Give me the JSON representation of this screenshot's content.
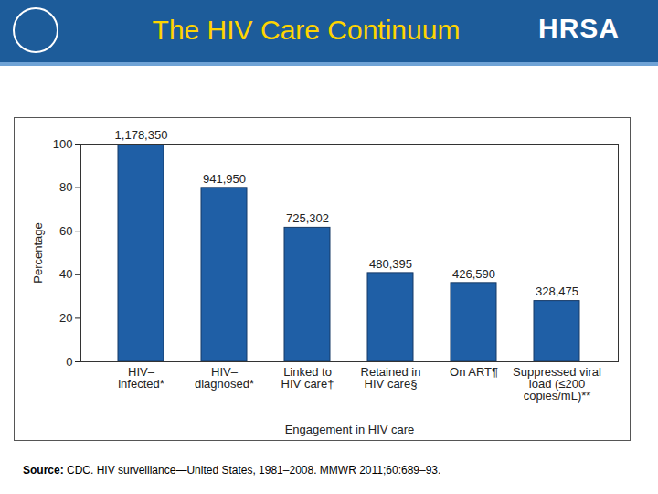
{
  "chart_data": {
    "type": "bar",
    "title": "The HIV Care Continuum",
    "header_logo": "HRSA",
    "categories": [
      "HIV–\ninfected*",
      "HIV–\ndiagnosed*",
      "Linked to\nHIV care†",
      "Retained in\nHIV care§",
      "On ART¶",
      "Suppressed viral\nload (≤200\ncopies/mL)**"
    ],
    "values": [
      100,
      79.9,
      61.6,
      40.8,
      36.2,
      27.9
    ],
    "counts": [
      1178350,
      941950,
      725302,
      480395,
      426590,
      328475
    ],
    "color": "#1f5fa6",
    "ylim": [
      0,
      100
    ],
    "yticks": [
      0,
      20,
      40,
      60,
      80,
      100
    ],
    "y_label": "Percentage",
    "x_label": "Engagement in HIV care",
    "source_label": "Source:",
    "source": "CDC. HIV surveillance—United States, 1981–2008. MMWR 2011;60:689–93."
  }
}
